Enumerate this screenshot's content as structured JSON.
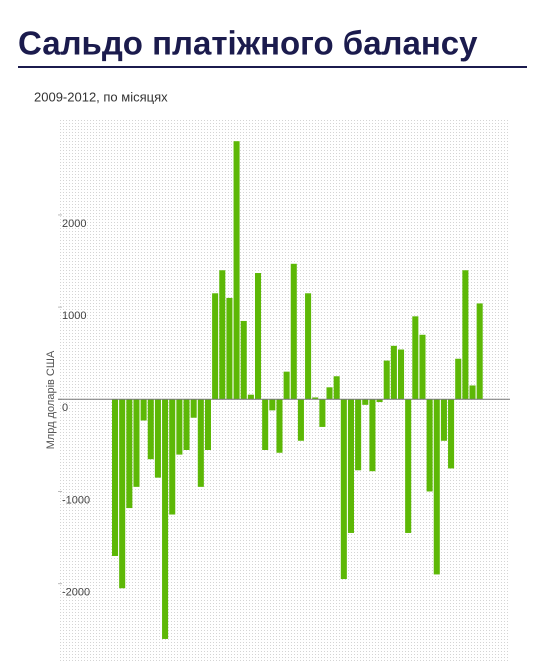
{
  "chart_data": {
    "type": "bar",
    "title": "Сальдо платіжного балансу",
    "subtitle": "2009-2012, по місяцях",
    "y_label": "Млрд доларів США",
    "color": "#5db806",
    "values": [
      -1700,
      -2050,
      -1180,
      -950,
      -230,
      -650,
      -850,
      -2600,
      -1250,
      -600,
      -550,
      -200,
      -950,
      -550,
      1150,
      1400,
      1100,
      2800,
      850,
      50,
      1370,
      -550,
      -120,
      -580,
      300,
      1470,
      -450,
      1150,
      20,
      -300,
      130,
      250,
      -1950,
      -1450,
      -770,
      -60,
      -780,
      -30,
      420,
      580,
      540,
      -1450,
      900,
      700,
      -1000,
      -1900,
      -450,
      -750,
      440,
      1400,
      150,
      1040
    ],
    "ylim": [
      -2850,
      3030
    ],
    "yticks": [
      -2000,
      -1000,
      0,
      1000,
      2000
    ],
    "grid": true
  }
}
